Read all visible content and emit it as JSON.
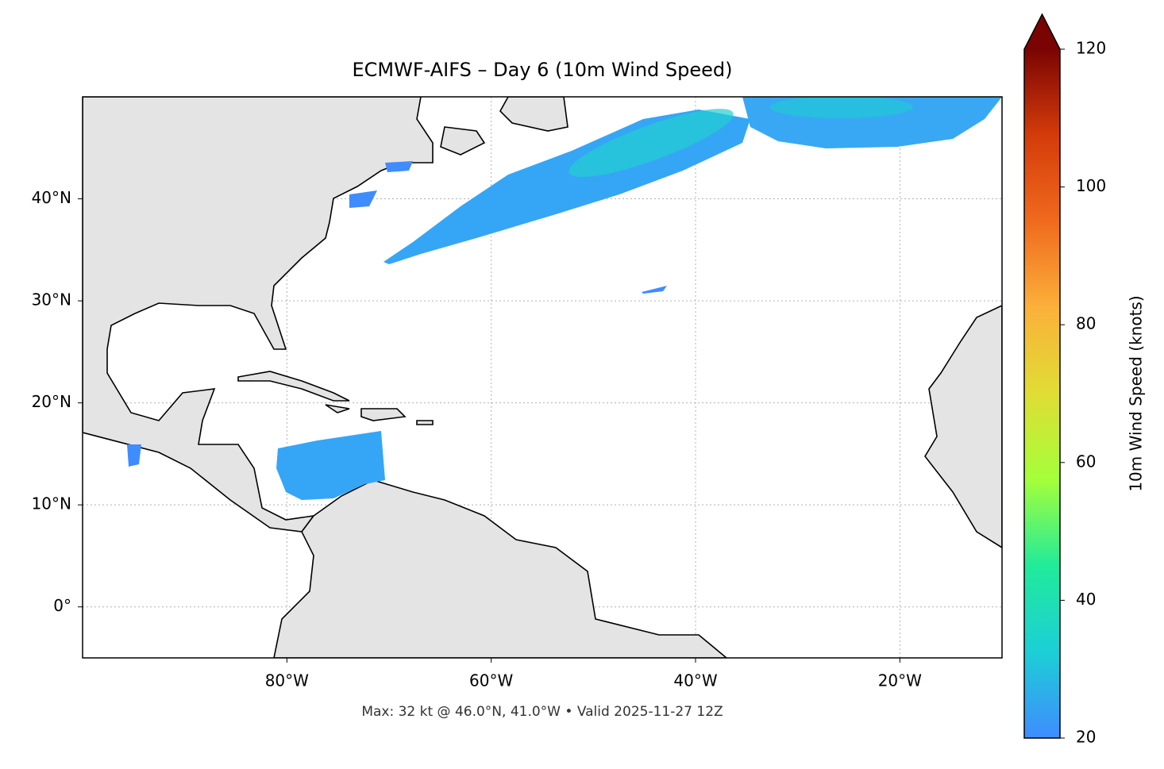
{
  "chart_data": {
    "type": "map",
    "title": "ECMWF-AIFS – Day 6 (10m Wind Speed)",
    "xlim": [
      -100,
      -10
    ],
    "xticks": [
      {
        "value": -80,
        "label": "80°W"
      },
      {
        "value": -60,
        "label": "60°W"
      },
      {
        "value": -40,
        "label": "40°W"
      },
      {
        "value": -20,
        "label": "20°W"
      }
    ],
    "ylim": [
      -5,
      50
    ],
    "yticks": [
      {
        "value": 0,
        "label": "0°"
      },
      {
        "value": 10,
        "label": "10°N"
      },
      {
        "value": 20,
        "label": "20°N"
      },
      {
        "value": 30,
        "label": "30°N"
      },
      {
        "value": 40,
        "label": "40°N"
      }
    ],
    "grid": true,
    "annotation": "Max: 32 kt @ 46.0°N, 41.0°W • Valid 2025-11-27 12Z",
    "colorbar": {
      "label": "10m Wind Speed (knots)",
      "lim": [
        20,
        120
      ],
      "ticks": [
        20,
        40,
        60,
        80,
        100,
        120
      ],
      "colors": [
        "#3f8cff",
        "#1ccfd6",
        "#20eb9a",
        "#a4ff3a",
        "#e0dd35",
        "#fbb03a",
        "#f06a1e",
        "#d43c0a",
        "#7a0403"
      ],
      "extend": "max"
    }
  }
}
